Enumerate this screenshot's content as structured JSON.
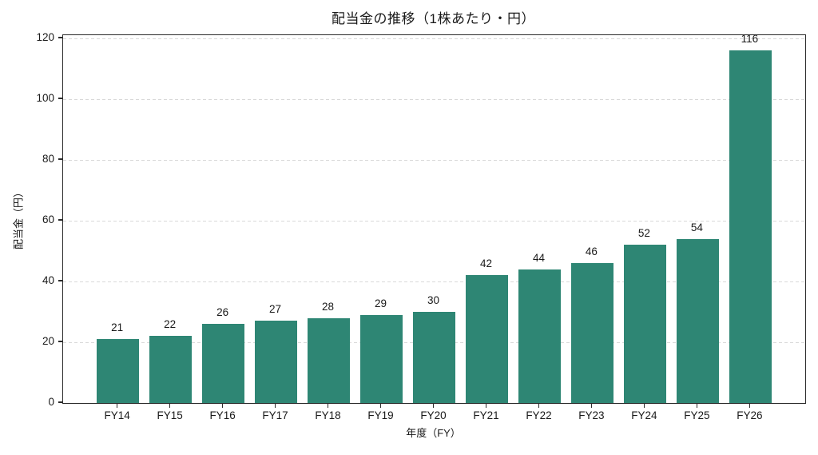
{
  "chart_data": {
    "type": "bar",
    "title": "配当金の推移（1株あたり・円）",
    "xlabel": "年度（FY）",
    "ylabel": "配当金（円）",
    "categories": [
      "FY14",
      "FY15",
      "FY16",
      "FY17",
      "FY18",
      "FY19",
      "FY20",
      "FY21",
      "FY22",
      "FY23",
      "FY24",
      "FY25",
      "FY26"
    ],
    "values": [
      21,
      22,
      26,
      27,
      28,
      29,
      30,
      42,
      44,
      46,
      52,
      54,
      116
    ],
    "value_labels_shown": true,
    "yticks": [
      0,
      20,
      40,
      60,
      80,
      100,
      120
    ],
    "ylim": [
      0,
      121
    ],
    "xlim": [
      -1.04,
      13.04
    ],
    "bar_width_ratio": 0.8,
    "bar_color": "#2e8674",
    "gridline_color": "#d9d9d9",
    "gridline_style": "dashed",
    "grid": "horizontal",
    "axis_color": "#2b2b2b",
    "text_color": "#1a1a1a",
    "legend": "none",
    "background": "#ffffff"
  }
}
